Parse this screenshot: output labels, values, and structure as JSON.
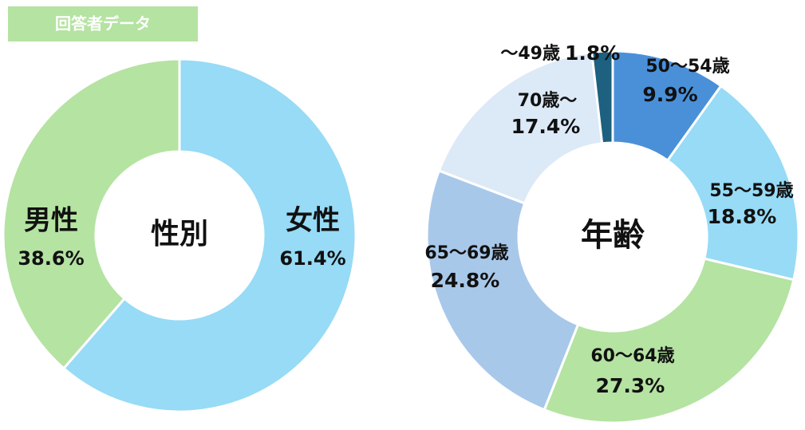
{
  "title": "回答者データ",
  "chart_data": [
    {
      "type": "donut",
      "title": "性別",
      "categories": [
        "女性",
        "男性"
      ],
      "values": [
        61.4,
        38.6
      ],
      "value_labels": [
        "61.4%",
        "38.6%"
      ],
      "colors": [
        "#97dbf6",
        "#b5e3a2"
      ]
    },
    {
      "type": "donut",
      "title": "年齢",
      "categories": [
        "50～54歳",
        "55～59歳",
        "60～64歳",
        "65～69歳",
        "70歳～",
        "～49歳"
      ],
      "values": [
        9.9,
        18.8,
        27.3,
        24.8,
        17.4,
        1.8
      ],
      "value_labels": [
        "9.9%",
        "18.8%",
        "27.3%",
        "24.8%",
        "17.4%",
        "1.8%"
      ],
      "colors": [
        "#4a90d9",
        "#97dbf6",
        "#b5e3a2",
        "#a8c8ea",
        "#dce9f7",
        "#1d6080"
      ]
    }
  ]
}
